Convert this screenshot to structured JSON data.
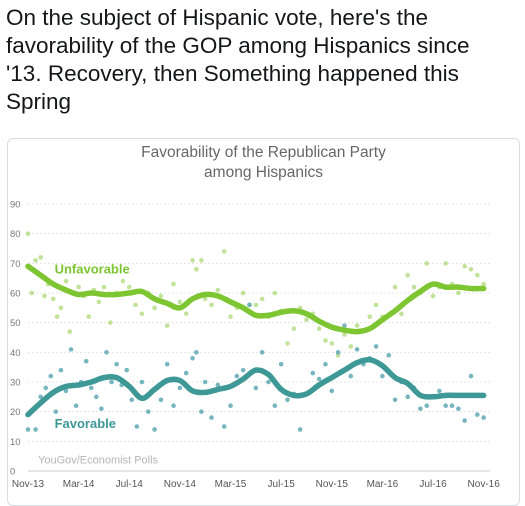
{
  "tweet": {
    "line1": "On the subject of Hispanic vote, here's the",
    "line2": "favorability of the GOP among Hispanics since",
    "line3": "'13. Recovery, then Something happened this",
    "line4": "Spring"
  },
  "chart_data": {
    "type": "scatter",
    "title_line1": "Favorability of the Republican Party",
    "title_line2": "among Hispanics",
    "source": "YouGov/Economist Polls",
    "xlabel": "",
    "ylabel": "",
    "ylim": [
      0,
      90
    ],
    "yticks": [
      0,
      10,
      20,
      30,
      40,
      50,
      60,
      70,
      80,
      90
    ],
    "xlim": [
      0,
      36.5
    ],
    "xtick_positions": [
      0,
      4,
      8,
      12,
      16,
      20,
      24,
      28,
      32,
      36
    ],
    "xtick_labels": [
      "Nov-13",
      "Mar-14",
      "Jul-14",
      "Nov-14",
      "Mar-15",
      "Jul-15",
      "Nov-15",
      "Mar-16",
      "Jul-16",
      "Nov-16"
    ],
    "grid": true,
    "series": [
      {
        "name": "Unfavorable",
        "color": "#7dc531",
        "point_color": "#b6dd86",
        "trend_x": [
          0,
          1,
          2,
          3,
          4,
          5,
          6,
          7,
          8,
          9,
          10,
          11,
          12,
          13,
          14,
          15,
          16,
          17,
          18,
          19,
          20,
          21,
          22,
          23,
          24,
          25,
          26,
          27,
          28,
          29,
          30,
          31,
          32,
          33,
          34,
          35,
          36
        ],
        "trend_y": [
          69,
          66,
          63,
          61,
          59.5,
          60,
          59.5,
          59.5,
          60,
          60.5,
          58,
          56.5,
          55,
          58,
          59.5,
          59,
          57,
          55,
          52.5,
          52.5,
          53.5,
          54,
          53,
          50.5,
          48.5,
          47.5,
          47,
          48,
          51,
          54,
          57.5,
          60.5,
          63,
          62,
          62,
          61.5,
          61.5
        ],
        "points": [
          [
            0,
            80
          ],
          [
            0.3,
            60
          ],
          [
            0.6,
            71
          ],
          [
            1,
            72
          ],
          [
            1.3,
            59
          ],
          [
            1.6,
            63
          ],
          [
            2,
            58
          ],
          [
            2.3,
            52
          ],
          [
            2.6,
            55
          ],
          [
            3,
            64
          ],
          [
            3.3,
            47
          ],
          [
            4,
            62
          ],
          [
            4.4,
            59
          ],
          [
            4.8,
            52
          ],
          [
            5.2,
            61
          ],
          [
            5.6,
            57
          ],
          [
            6,
            62
          ],
          [
            6.5,
            50
          ],
          [
            7,
            60
          ],
          [
            7.5,
            64
          ],
          [
            8,
            62
          ],
          [
            8.5,
            56
          ],
          [
            9,
            53
          ],
          [
            9.5,
            60
          ],
          [
            10,
            55
          ],
          [
            10.5,
            59
          ],
          [
            11,
            49
          ],
          [
            11.5,
            63
          ],
          [
            12,
            57
          ],
          [
            12.5,
            53
          ],
          [
            13,
            71
          ],
          [
            13.3,
            68
          ],
          [
            13.7,
            71
          ],
          [
            14,
            58
          ],
          [
            14.5,
            56
          ],
          [
            15,
            61
          ],
          [
            15.5,
            74
          ],
          [
            16,
            52
          ],
          [
            16.5,
            55
          ],
          [
            17,
            60
          ],
          [
            17.5,
            56
          ],
          [
            18,
            56
          ],
          [
            18.5,
            58
          ],
          [
            19,
            52
          ],
          [
            19.5,
            60
          ],
          [
            20,
            54
          ],
          [
            20.5,
            43
          ],
          [
            21,
            48
          ],
          [
            21.5,
            55
          ],
          [
            22,
            51
          ],
          [
            22.5,
            53
          ],
          [
            23,
            48
          ],
          [
            23.5,
            44
          ],
          [
            24,
            43
          ],
          [
            24.5,
            39
          ],
          [
            25,
            46
          ],
          [
            25.5,
            42
          ],
          [
            26,
            49
          ],
          [
            26.5,
            37
          ],
          [
            27,
            52
          ],
          [
            27.5,
            56
          ],
          [
            28,
            52
          ],
          [
            29,
            62
          ],
          [
            29.5,
            53
          ],
          [
            30,
            66
          ],
          [
            30.5,
            62
          ],
          [
            31,
            60
          ],
          [
            31.5,
            70
          ],
          [
            32,
            59
          ],
          [
            32.5,
            62
          ],
          [
            33,
            70
          ],
          [
            33.5,
            63
          ],
          [
            34,
            60
          ],
          [
            34.5,
            69
          ],
          [
            35,
            68
          ],
          [
            35.5,
            66
          ],
          [
            36,
            63
          ]
        ]
      },
      {
        "name": "Favorable",
        "color": "#3e9896",
        "point_color": "#5fa9b4",
        "trend_x": [
          0,
          1,
          2,
          3,
          4,
          5,
          6,
          7,
          8,
          9,
          10,
          11,
          12,
          13,
          14,
          15,
          16,
          17,
          18,
          19,
          20,
          21,
          22,
          23,
          24,
          25,
          26,
          27,
          28,
          29,
          30,
          31,
          32,
          33,
          34,
          35,
          36
        ],
        "trend_y": [
          19,
          23,
          26.5,
          28.5,
          29,
          30,
          31.5,
          31.5,
          28.5,
          24.5,
          27.5,
          30.5,
          30.5,
          27,
          26.5,
          27.5,
          28.5,
          31,
          34,
          32.5,
          27.5,
          25.5,
          26,
          29,
          31.5,
          34,
          36.5,
          37.5,
          35.5,
          31.5,
          29.5,
          25.5,
          25,
          25.5,
          25.5,
          25.5,
          25.5
        ],
        "points": [
          [
            0,
            14
          ],
          [
            0.3,
            20
          ],
          [
            0.6,
            14
          ],
          [
            1,
            25
          ],
          [
            1.4,
            28
          ],
          [
            1.8,
            32
          ],
          [
            2.2,
            20
          ],
          [
            2.6,
            34
          ],
          [
            3,
            27
          ],
          [
            3.4,
            41
          ],
          [
            3.8,
            22
          ],
          [
            4.2,
            30
          ],
          [
            4.6,
            37
          ],
          [
            5,
            28
          ],
          [
            5.4,
            25
          ],
          [
            5.8,
            21
          ],
          [
            6.2,
            40
          ],
          [
            6.6,
            30
          ],
          [
            7,
            36
          ],
          [
            7.4,
            29
          ],
          [
            7.8,
            34
          ],
          [
            8.2,
            24
          ],
          [
            8.6,
            15
          ],
          [
            9,
            30
          ],
          [
            9.5,
            20
          ],
          [
            10,
            14
          ],
          [
            10.5,
            24
          ],
          [
            11,
            36
          ],
          [
            11.5,
            22
          ],
          [
            12,
            28
          ],
          [
            12.5,
            33
          ],
          [
            13,
            38
          ],
          [
            13.3,
            40
          ],
          [
            13.7,
            20
          ],
          [
            14,
            30
          ],
          [
            14.5,
            18
          ],
          [
            15,
            29
          ],
          [
            15.5,
            15
          ],
          [
            16,
            22
          ],
          [
            16.5,
            32
          ],
          [
            17,
            34
          ],
          [
            17.5,
            56
          ],
          [
            18,
            28
          ],
          [
            18.5,
            40
          ],
          [
            19,
            30
          ],
          [
            19.5,
            22
          ],
          [
            20,
            36
          ],
          [
            20.5,
            24
          ],
          [
            21,
            26
          ],
          [
            21.5,
            14
          ],
          [
            22,
            26
          ],
          [
            22.5,
            33
          ],
          [
            23,
            31
          ],
          [
            23.5,
            36
          ],
          [
            24,
            27
          ],
          [
            24.5,
            40
          ],
          [
            25,
            49
          ],
          [
            25.5,
            32
          ],
          [
            26,
            41
          ],
          [
            26.5,
            36
          ],
          [
            27,
            38
          ],
          [
            27.5,
            42
          ],
          [
            28,
            32
          ],
          [
            28.5,
            39
          ],
          [
            29,
            24
          ],
          [
            29.5,
            30
          ],
          [
            30,
            25
          ],
          [
            30.5,
            28
          ],
          [
            31,
            21
          ],
          [
            31.5,
            22
          ],
          [
            32,
            25
          ],
          [
            32.5,
            27
          ],
          [
            33,
            22
          ],
          [
            33.5,
            22
          ],
          [
            34,
            21
          ],
          [
            34.5,
            17
          ],
          [
            35,
            32
          ],
          [
            35.5,
            19
          ],
          [
            36,
            18
          ]
        ]
      }
    ]
  }
}
